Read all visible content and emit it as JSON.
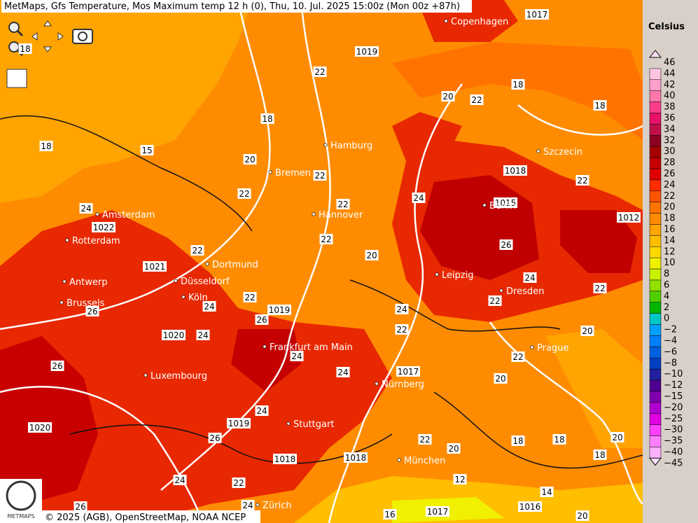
{
  "header": {
    "title": "MetMaps, Gfs Temperature, Mos Maximum temp 12 h (0), Thu, 10. Jul. 2025 15:00z (Mon 00z +87h)"
  },
  "legend": {
    "title": "Celsius",
    "items": [
      {
        "label": "46",
        "color": "#ffe0f0"
      },
      {
        "label": "44",
        "color": "#ffc4e2"
      },
      {
        "label": "42",
        "color": "#ffa0cc"
      },
      {
        "label": "40",
        "color": "#ff78aa"
      },
      {
        "label": "38",
        "color": "#ff3c8c"
      },
      {
        "label": "36",
        "color": "#e8106a"
      },
      {
        "label": "34",
        "color": "#c0104a"
      },
      {
        "label": "32",
        "color": "#8c0020"
      },
      {
        "label": "30",
        "color": "#a40000"
      },
      {
        "label": "28",
        "color": "#c40000"
      },
      {
        "label": "26",
        "color": "#e00000"
      },
      {
        "label": "24",
        "color": "#ff2c00"
      },
      {
        "label": "22",
        "color": "#ff5400"
      },
      {
        "label": "20",
        "color": "#ff7400"
      },
      {
        "label": "18",
        "color": "#ff8c00"
      },
      {
        "label": "16",
        "color": "#ffa400"
      },
      {
        "label": "14",
        "color": "#ffbe00"
      },
      {
        "label": "12",
        "color": "#ffd800"
      },
      {
        "label": "10",
        "color": "#f0f000"
      },
      {
        "label": "8",
        "color": "#c8f000"
      },
      {
        "label": "6",
        "color": "#90e000"
      },
      {
        "label": "4",
        "color": "#50d000"
      },
      {
        "label": "2",
        "color": "#00b400"
      },
      {
        "label": "0",
        "color": "#00c8c8"
      },
      {
        "label": "−2",
        "color": "#00a0ff"
      },
      {
        "label": "−4",
        "color": "#0080ff"
      },
      {
        "label": "−6",
        "color": "#0060e0"
      },
      {
        "label": "−8",
        "color": "#0040c0"
      },
      {
        "label": "−10",
        "color": "#2020a0"
      },
      {
        "label": "−12",
        "color": "#500090"
      },
      {
        "label": "−15",
        "color": "#8000b0"
      },
      {
        "label": "−20",
        "color": "#b000d0"
      },
      {
        "label": "−25",
        "color": "#e000e0"
      },
      {
        "label": "−30",
        "color": "#ff40ff"
      },
      {
        "label": "−35",
        "color": "#ff80ff"
      },
      {
        "label": "−40",
        "color": "#ffb0ff"
      },
      {
        "label": "−45",
        "color": "#ffe0ff"
      }
    ]
  },
  "cities": [
    "Copenhagen",
    "Hamburg",
    "Szczecin",
    "Bremen",
    "Amsterdam",
    "Berlin",
    "Hannover",
    "Rotterdam",
    "Dortmund",
    "Leipzig",
    "Antwerp",
    "Düsseldorf",
    "Dresden",
    "Köln",
    "Brussels",
    "Frankfurt am Main",
    "Prague",
    "Luxembourg",
    "Nürnberg",
    "Stuttgart",
    "München",
    "Zürich"
  ],
  "contour_labels": [
    "1017",
    "18",
    "18",
    "18",
    "18",
    "20",
    "22",
    "22",
    "22",
    "22",
    "24",
    "1018",
    "1015",
    "22",
    "1012",
    "26",
    "24",
    "22",
    "22",
    "24",
    "22",
    "20",
    "22",
    "20",
    "18",
    "18",
    "18",
    "20",
    "1019",
    "26",
    "24",
    "22",
    "22",
    "1021",
    "1020",
    "24",
    "24",
    "24",
    "1017",
    "26",
    "26",
    "1022",
    "24",
    "1020",
    "1019",
    "24",
    "26",
    "22",
    "20",
    "1018",
    "1018",
    "22",
    "24",
    "12",
    "14",
    "1016",
    "20",
    "1017",
    "16",
    "26",
    "20",
    "24",
    "1019",
    "22",
    "20",
    "22",
    "15",
    "18"
  ],
  "logo": "METMAPS",
  "attribution": "© 2025 (AGB), OpenStreetMap, NOAA NCEP"
}
